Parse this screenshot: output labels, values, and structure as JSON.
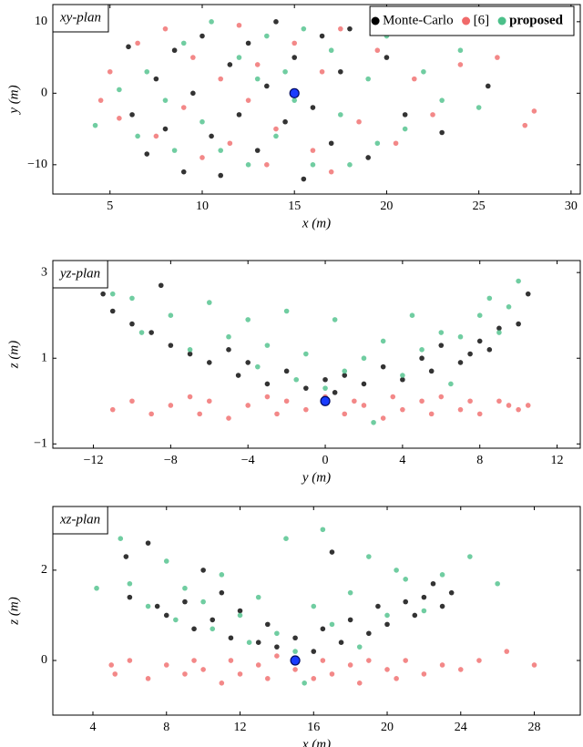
{
  "chart_data": [
    {
      "type": "scatter",
      "label": "xy-plan",
      "xlabel": "x (m)",
      "ylabel": "y (m)",
      "legend": "upper right",
      "xlim": [
        1.9,
        30.5
      ],
      "ylim": [
        -14.1,
        12.4
      ],
      "xticks": [
        5,
        10,
        15,
        20,
        25,
        30
      ],
      "yticks": [
        {
          "value": -10,
          "label": "−10"
        },
        0,
        10
      ],
      "marker": {
        "x": 15,
        "y": 0,
        "color": "#1a3cff"
      },
      "series": [
        {
          "name": "Monte-Carlo",
          "color": "#000000",
          "x": [
            6,
            6.2,
            7,
            7.5,
            8,
            8.5,
            9,
            9.5,
            10,
            10.5,
            11,
            11.5,
            12,
            12.5,
            13,
            13.5,
            14,
            14.5,
            15,
            15.5,
            16,
            16.5,
            17,
            17.5,
            18,
            19,
            20,
            21,
            23,
            25.5
          ],
          "y": [
            6.5,
            -3,
            -8.5,
            2,
            -5,
            6,
            -11,
            0,
            8,
            -6,
            -11.5,
            4,
            -3,
            7,
            -8,
            1,
            10,
            -4,
            5,
            -12,
            -2,
            8,
            -7,
            3,
            9,
            -9,
            5,
            -3,
            -5.5,
            1
          ]
        },
        {
          "name": "[6]",
          "color": "#f06a6a",
          "x": [
            4.5,
            5,
            5.5,
            6.5,
            7.5,
            8,
            9,
            9.5,
            10,
            11,
            11.5,
            12,
            12.5,
            13,
            13.5,
            14,
            15,
            16,
            16.5,
            17,
            17.5,
            18.5,
            19.5,
            20.5,
            21.5,
            22.5,
            24,
            26,
            27.5,
            28
          ],
          "y": [
            -1,
            3,
            -3.5,
            7,
            -6,
            9,
            -2,
            5,
            -9,
            2,
            -7,
            9.5,
            -1,
            4,
            -10,
            -5,
            7,
            -8,
            3,
            -11,
            9,
            -4,
            6,
            -7,
            2,
            -3,
            4,
            5,
            -4.5,
            -2.5
          ]
        },
        {
          "name": "proposed",
          "color": "#4cc08a",
          "x": [
            4.2,
            5.5,
            6.5,
            7,
            8,
            8.5,
            9,
            10,
            10.5,
            11,
            12,
            12.5,
            13,
            13.5,
            14,
            14.5,
            15,
            15.5,
            16,
            17,
            17.5,
            18,
            19,
            19.5,
            20,
            21,
            22,
            23,
            24,
            25
          ],
          "y": [
            -4.5,
            0.5,
            -6,
            3,
            -1,
            -8,
            7,
            -4,
            10,
            -8,
            5,
            -10,
            2,
            8,
            -6,
            3,
            -1,
            9,
            -10,
            6,
            -3,
            -10,
            2,
            -7,
            8,
            -5,
            3,
            -1,
            6,
            -2
          ]
        }
      ]
    },
    {
      "type": "scatter",
      "label": "yz-plan",
      "xlabel": "y (m)",
      "ylabel": "z (m)",
      "xlim": [
        -14.1,
        13.2
      ],
      "ylim": [
        -1.1,
        3.28
      ],
      "xticks": [
        {
          "value": -12,
          "label": "−12"
        },
        {
          "value": -8,
          "label": "−8"
        },
        {
          "value": -4,
          "label": "−4"
        },
        0,
        4,
        8,
        12
      ],
      "yticks": [
        {
          "value": -1,
          "label": "−1"
        },
        1,
        3
      ],
      "marker": {
        "x": 0,
        "y": 0,
        "color": "#1a3cff"
      },
      "series": [
        {
          "color": "#000000",
          "x": [
            -11.5,
            -11,
            -10,
            -9,
            -8.5,
            -8,
            -7,
            -6,
            -5,
            -4.5,
            -4,
            -3,
            -2,
            -1,
            0,
            0.5,
            1,
            2,
            3,
            4,
            5,
            5.5,
            6,
            7,
            7.5,
            8,
            8.5,
            9,
            10,
            10.5
          ],
          "y": [
            2.5,
            2.1,
            1.8,
            1.6,
            2.7,
            1.3,
            1.1,
            0.9,
            1.2,
            0.6,
            0.9,
            0.4,
            0.7,
            0.3,
            0.5,
            0.2,
            0.6,
            0.4,
            0.8,
            0.5,
            1,
            0.7,
            1.3,
            0.9,
            1.1,
            1.4,
            1.2,
            1.7,
            1.8,
            2.5
          ]
        },
        {
          "color": "#f06a6a",
          "x": [
            -11,
            -10,
            -9,
            -8,
            -7,
            -6.5,
            -6,
            -5,
            -4,
            -3,
            -2.5,
            -2,
            -1,
            0,
            1,
            1.5,
            2,
            3,
            3.5,
            4,
            5,
            5.5,
            6,
            7,
            7.5,
            8,
            9,
            9.5,
            10,
            10.5
          ],
          "y": [
            -0.2,
            0,
            -0.3,
            -0.1,
            0.1,
            -0.3,
            0,
            -0.4,
            -0.1,
            0.1,
            -0.3,
            0,
            -0.2,
            0.1,
            -0.3,
            0,
            -0.1,
            -0.4,
            0.1,
            -0.2,
            0,
            -0.3,
            0.1,
            -0.2,
            0,
            -0.3,
            0,
            -0.1,
            -0.2,
            -0.1
          ]
        },
        {
          "color": "#4cc08a",
          "x": [
            -11,
            -10,
            -9.5,
            -8,
            -7,
            -6,
            -5,
            -4,
            -3.5,
            -3,
            -2,
            -1.5,
            -1,
            0,
            0.5,
            1,
            2,
            2.5,
            3,
            4,
            4.5,
            5,
            6,
            6.5,
            7,
            8,
            8.5,
            9,
            9.5,
            10
          ],
          "y": [
            2.5,
            2.4,
            1.6,
            2,
            1.2,
            2.3,
            1.5,
            1.9,
            0.8,
            1.3,
            2.1,
            0.5,
            1.1,
            0.3,
            1.9,
            0.7,
            1,
            -0.5,
            1.4,
            0.6,
            2,
            1.2,
            1.6,
            0.4,
            1.5,
            2,
            2.4,
            1.6,
            2.2,
            2.8
          ]
        }
      ]
    },
    {
      "type": "scatter",
      "label": "xz-plan",
      "xlabel": "x (m)",
      "ylabel": "z (m)",
      "xlim": [
        1.82,
        30.5
      ],
      "ylim": [
        -1.21,
        3.41
      ],
      "xticks": [
        4,
        8,
        12,
        16,
        20,
        24,
        28
      ],
      "yticks": [
        0,
        2
      ],
      "marker": {
        "x": 15,
        "y": 0,
        "color": "#1a3cff"
      },
      "series": [
        {
          "color": "#000000",
          "x": [
            5.8,
            6,
            7,
            7.5,
            8,
            9,
            9.5,
            10,
            10.5,
            11,
            11.5,
            12,
            13,
            13.5,
            14,
            15,
            16,
            16.5,
            17,
            17.5,
            18,
            19,
            19.5,
            20,
            21,
            21.5,
            22,
            22.5,
            23,
            23.5
          ],
          "y": [
            2.3,
            1.4,
            2.6,
            1.2,
            1,
            1.3,
            0.7,
            2,
            0.9,
            1.5,
            0.5,
            1.1,
            0.4,
            0.8,
            0.3,
            0.5,
            0.2,
            0.7,
            2.4,
            0.4,
            0.9,
            0.6,
            1.2,
            0.8,
            1.3,
            1,
            1.4,
            1.7,
            1.2,
            1.5
          ]
        },
        {
          "color": "#f06a6a",
          "x": [
            5,
            5.2,
            6,
            7,
            8,
            9,
            9.5,
            10,
            11,
            11.5,
            12,
            13,
            13.5,
            14,
            15,
            16,
            16.5,
            17,
            18,
            18.5,
            19,
            20,
            20.5,
            21,
            22,
            23,
            24,
            25,
            26.5,
            28
          ],
          "y": [
            -0.1,
            -0.3,
            0,
            -0.4,
            -0.1,
            -0.3,
            0,
            -0.2,
            -0.5,
            0,
            -0.3,
            -0.1,
            -0.4,
            0.1,
            -0.2,
            -0.4,
            0,
            -0.3,
            -0.1,
            -0.5,
            0,
            -0.2,
            -0.4,
            0,
            -0.3,
            -0.1,
            -0.2,
            0,
            0.2,
            -0.1
          ]
        },
        {
          "color": "#4cc08a",
          "x": [
            4.2,
            5.5,
            6,
            7,
            8,
            8.5,
            9,
            10,
            10.5,
            11,
            12,
            12.5,
            13,
            14,
            14.5,
            15,
            15.5,
            16,
            16.5,
            17,
            18,
            18.5,
            19,
            20,
            20.5,
            21,
            22,
            23,
            24.5,
            26
          ],
          "y": [
            1.6,
            2.7,
            1.7,
            1.2,
            2.2,
            0.9,
            1.6,
            1.3,
            0.7,
            1.9,
            1,
            0.4,
            1.4,
            0.6,
            2.7,
            0.2,
            -0.5,
            1.2,
            2.9,
            0.8,
            1.5,
            0.3,
            2.3,
            1,
            2,
            1.8,
            1.1,
            1.9,
            2.3,
            1.7
          ]
        }
      ]
    }
  ]
}
